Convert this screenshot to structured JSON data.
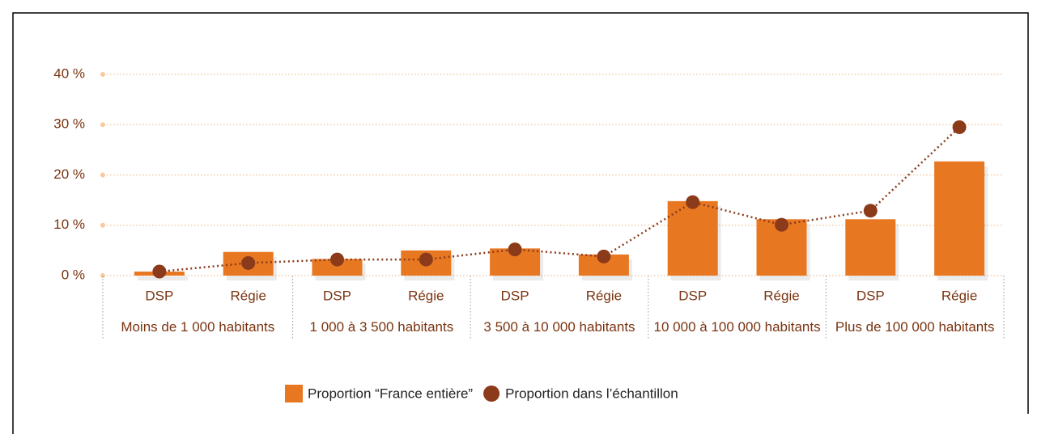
{
  "chart_data": {
    "type": "bar",
    "categories": [
      "DSP",
      "Régie",
      "DSP",
      "Régie",
      "DSP",
      "Régie",
      "DSP",
      "Régie",
      "DSP",
      "Régie"
    ],
    "groups": [
      "Moins de 1 000 habitants",
      "1 000 à 3 500 habitants",
      "3 500 à 10 000 habitants",
      "10 000 à 100 000 habitants",
      "Plus de 100 000 habitants"
    ],
    "series": [
      {
        "name": "Proportion “France entière”",
        "type": "bar",
        "color": "#e87722",
        "values": [
          0.8,
          4.7,
          3.3,
          5.0,
          5.4,
          4.2,
          14.8,
          11.2,
          11.2,
          22.7
        ]
      },
      {
        "name": "Proportion dans l’échantillon",
        "type": "line",
        "color": "#8b3a1a",
        "values": [
          0.8,
          2.5,
          3.2,
          3.2,
          5.2,
          3.8,
          14.6,
          10.1,
          12.9,
          29.5
        ]
      }
    ],
    "ylim": [
      0,
      40
    ],
    "yticks": [
      {
        "value": 0,
        "label": "0 %"
      },
      {
        "value": 10,
        "label": "10 %"
      },
      {
        "value": 20,
        "label": "20 %"
      },
      {
        "value": 30,
        "label": "30 %"
      },
      {
        "value": 40,
        "label": "40 %"
      }
    ],
    "grid": true,
    "legend": "bottom"
  }
}
